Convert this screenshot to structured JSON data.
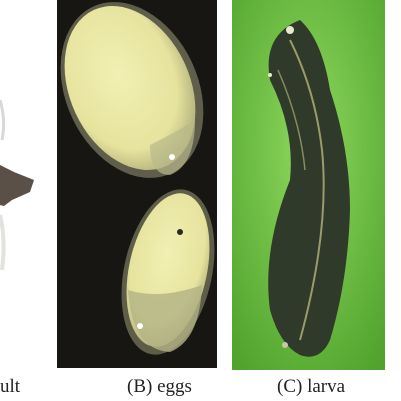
{
  "panels": [
    {
      "caption": "ult"
    },
    {
      "caption": "(B) eggs"
    },
    {
      "caption": "(C) larva"
    }
  ]
}
